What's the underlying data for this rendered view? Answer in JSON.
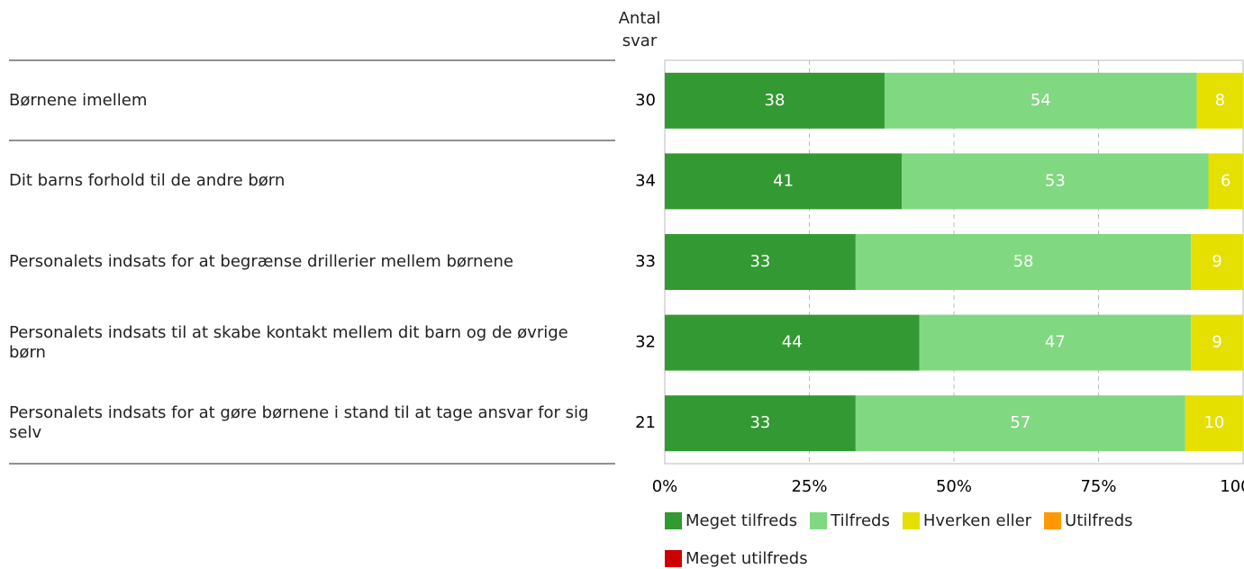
{
  "chart_data": {
    "type": "stacked_bar_horizontal",
    "count_title": "Antal svar",
    "categories": [
      "Børnene imellem",
      "Dit barns forhold til de andre børn",
      "Personalets indsats for at begrænse drillerier mellem børnene",
      "Personalets indsats til at skabe kontakt mellem dit barn og de øvrige børn",
      "Personalets indsats for at gøre børnene i stand til at tage ansvar for sig selv"
    ],
    "counts": [
      30,
      34,
      33,
      32,
      21
    ],
    "series": [
      {
        "name": "Meget tilfreds",
        "color": "#339933",
        "values": [
          38,
          41,
          33,
          44,
          33
        ]
      },
      {
        "name": "Tilfreds",
        "color": "#80d880",
        "values": [
          54,
          53,
          58,
          47,
          57
        ]
      },
      {
        "name": "Hverken eller",
        "color": "#e5e000",
        "values": [
          8,
          6,
          9,
          9,
          10
        ]
      },
      {
        "name": "Utilfreds",
        "color": "#ff9900",
        "values": [
          0,
          0,
          0,
          0,
          0
        ]
      },
      {
        "name": "Meget utilfreds",
        "color": "#cc0000",
        "values": [
          0,
          0,
          0,
          0,
          0
        ]
      }
    ],
    "xlim": [
      0,
      100
    ],
    "xticks": [
      {
        "value": 0,
        "label": "0%"
      },
      {
        "value": 25,
        "label": "25%"
      },
      {
        "value": 50,
        "label": "50%"
      },
      {
        "value": 75,
        "label": "75%"
      },
      {
        "value": 100,
        "label": "100%"
      }
    ],
    "grid": true
  }
}
